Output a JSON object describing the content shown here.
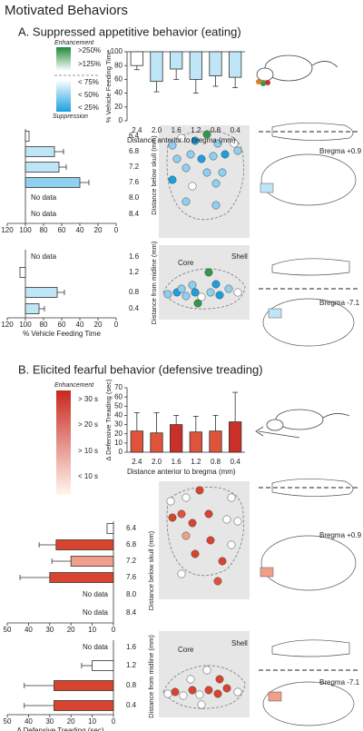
{
  "title": "Motivated Behaviors",
  "no_data": "No data",
  "panels": [
    {
      "title": "A. Suppressed appetitive behavior (eating)",
      "legend": {
        "top": "Enhancement",
        "labels": [
          ">250%",
          ">125%",
          "< 75%",
          "< 50%",
          "< 25%"
        ],
        "bottom": "Suppression"
      },
      "bregma": [
        "Bregma +0.9",
        "Bregma -7.1"
      ],
      "regions": [
        "Core",
        "Shell"
      ]
    },
    {
      "title": "B. Elicited fearful behavior (defensive treading)",
      "legend": {
        "top": "Enhancement",
        "labels": [
          "> 30 s",
          "> 20 s",
          "> 10 s",
          "< 10 s"
        ]
      },
      "bregma": [
        "Bregma +0.9",
        "Bregma -7.1"
      ],
      "regions": [
        "Core",
        "Shell"
      ]
    }
  ],
  "chart_data": [
    {
      "type": "bar",
      "ylabel": "% Vehicle Feeding Time",
      "xlabel": "Distance anterior to bregma (mm)",
      "categories": [
        "2.4",
        "2.0",
        "1.6",
        "1.2",
        "0.8",
        "0.4"
      ],
      "values": [
        80,
        57,
        75,
        60,
        65,
        63
      ],
      "errors": [
        6,
        15,
        15,
        20,
        15,
        15
      ],
      "baseline": 100,
      "colors": [
        "#ffffff",
        "#bfe6f7",
        "#bfe6f7",
        "#bfe6f7",
        "#bfe6f7",
        "#bfe6f7"
      ],
      "ylim": [
        0,
        100
      ],
      "yticks": [
        0,
        20,
        40,
        60,
        80,
        100
      ]
    },
    {
      "type": "barh",
      "ylabel": "Distance below skull (mm)",
      "categories": [
        "6.4",
        "6.8",
        "7.2",
        "7.6",
        "8.0",
        "8.4"
      ],
      "values": [
        96,
        68,
        63,
        40,
        null,
        null
      ],
      "errors": [
        null,
        10,
        8,
        10,
        null,
        null
      ],
      "baseline": 100,
      "colors": [
        "#ffffff",
        "#bfe6f7",
        "#bfe6f7",
        "#8fd0f0",
        null,
        null
      ],
      "xlim": [
        120,
        0
      ],
      "xticks": [
        120,
        100,
        80,
        60,
        40,
        20,
        0
      ]
    },
    {
      "type": "barh",
      "ylabel": "Distance from midline (mm)",
      "xlabel": "% Vehicle Feeding Time",
      "categories": [
        "1.6",
        "1.2",
        "0.8",
        "0.4"
      ],
      "values": [
        null,
        106,
        65,
        85
      ],
      "errors": [
        null,
        null,
        8,
        6
      ],
      "baseline": 100,
      "colors": [
        null,
        "#ffffff",
        "#bfe6f7",
        "#bfe6f7"
      ],
      "xlim": [
        120,
        0
      ],
      "xticks": [
        120,
        100,
        80,
        60,
        40,
        20,
        0
      ]
    },
    {
      "type": "bar",
      "ylabel": "Δ Defensive Treading (sec)",
      "xlabel": "Distance anterior to bregma (mm)",
      "categories": [
        "2.4",
        "2.0",
        "1.6",
        "1.2",
        "0.8",
        "0.4"
      ],
      "values": [
        23,
        21,
        30,
        22,
        23,
        33
      ],
      "errors": [
        20,
        22,
        10,
        17,
        17,
        32
      ],
      "baseline": 0,
      "colors": [
        "#e0533b",
        "#e0533b",
        "#c9302a",
        "#e0533b",
        "#e0533b",
        "#c9302a"
      ],
      "ylim": [
        0,
        70
      ],
      "yticks": [
        0,
        10,
        20,
        30,
        40,
        50,
        60,
        70
      ]
    },
    {
      "type": "barh",
      "ylabel": "Distance below skull (mm)",
      "categories": [
        "6.4",
        "6.8",
        "7.2",
        "7.6",
        "8.0",
        "8.4"
      ],
      "values": [
        3,
        27,
        20,
        30,
        null,
        null
      ],
      "errors": [
        null,
        8,
        9,
        14,
        null,
        null
      ],
      "baseline": 0,
      "colors": [
        "#ffffff",
        "#d9442e",
        "#f0a08a",
        "#d9442e",
        null,
        null
      ],
      "xlim": [
        50,
        0
      ],
      "xticks": [
        50,
        40,
        30,
        20,
        10,
        0
      ]
    },
    {
      "type": "barh",
      "ylabel": "Distance from midline (mm)",
      "xlabel": "Δ Defensive Treading (sec)",
      "categories": [
        "1.6",
        "1.2",
        "0.8",
        "0.4"
      ],
      "values": [
        null,
        10,
        28,
        28
      ],
      "errors": [
        null,
        5,
        14,
        14
      ],
      "baseline": 0,
      "colors": [
        null,
        "#ffffff",
        "#d9442e",
        "#d9442e"
      ],
      "xlim": [
        50,
        0
      ],
      "xticks": [
        50,
        40,
        30,
        20,
        10,
        0
      ]
    }
  ]
}
